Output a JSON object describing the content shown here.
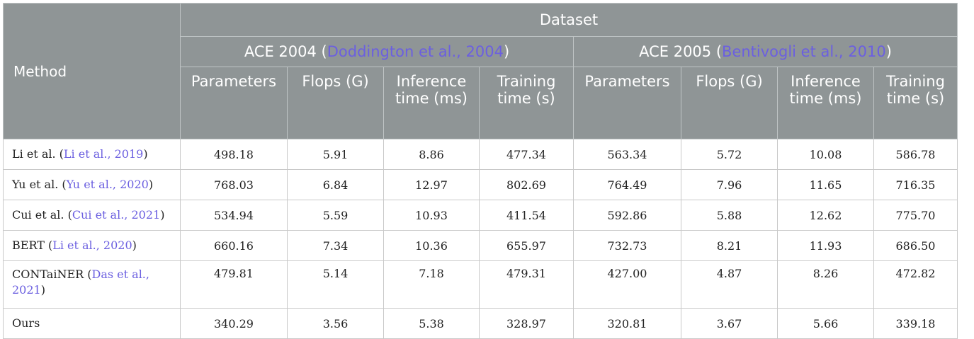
{
  "header": {
    "method": "Method",
    "dataset": "Dataset",
    "groups": [
      {
        "name": "ACE 2004 (",
        "cite": "Doddington et al., 2004",
        "close": ")"
      },
      {
        "name": "ACE 2005 (",
        "cite": "Bentivogli et al., 2010",
        "close": ")"
      }
    ],
    "columns": [
      "Parameters",
      "Flops (G)",
      "Inference time (ms)",
      "Training time (s)",
      "Parameters",
      "Flops (G)",
      "Inference time (ms)",
      "Training time (s)"
    ]
  },
  "rows": [
    {
      "name": "Li et al. (",
      "cite": "Li et al., 2019",
      "close": ")",
      "values": [
        "498.18",
        "5.91",
        "8.86",
        "477.34",
        "563.34",
        "5.72",
        "10.08",
        "586.78"
      ]
    },
    {
      "name": "Yu et al. (",
      "cite": "Yu et al., 2020",
      "close": ")",
      "values": [
        "768.03",
        "6.84",
        "12.97",
        "802.69",
        "764.49",
        "7.96",
        "11.65",
        "716.35"
      ]
    },
    {
      "name": "Cui et al. (",
      "cite": "Cui et al., 2021",
      "close": ")",
      "values": [
        "534.94",
        "5.59",
        "10.93",
        "411.54",
        "592.86",
        "5.88",
        "12.62",
        "775.70"
      ]
    },
    {
      "name": "BERT (",
      "cite": "Li et al., 2020",
      "close": ")",
      "values": [
        "660.16",
        "7.34",
        "10.36",
        "655.97",
        "732.73",
        "8.21",
        "11.93",
        "686.50"
      ]
    },
    {
      "name": "CONTaiNER (",
      "cite": "Das et al., 2021",
      "close": ")",
      "values": [
        "479.81",
        "5.14",
        "7.18",
        "479.31",
        "427.00",
        "4.87",
        "8.26",
        "472.82"
      ]
    },
    {
      "name": "Ours",
      "cite": "",
      "close": "",
      "values": [
        "340.29",
        "3.56",
        "5.38",
        "328.97",
        "320.81",
        "3.67",
        "5.66",
        "339.18"
      ]
    }
  ],
  "colors": {
    "header_bg": "#8f9596",
    "citation": "#6b5fe0"
  }
}
